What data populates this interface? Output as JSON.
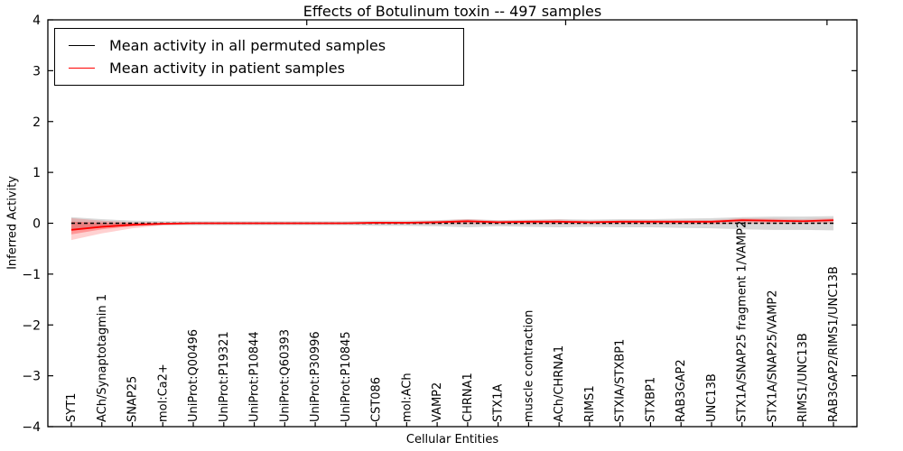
{
  "title": "Effects of Botulinum toxin -- 497 samples",
  "legend": [
    {
      "label": "Mean activity in all permuted samples",
      "color": "#000000"
    },
    {
      "label": "Mean activity in patient samples",
      "color": "#ff0000"
    }
  ],
  "chart_data": {
    "type": "line",
    "title": "Effects of Botulinum toxin -- 497 samples",
    "xlabel": "Cellular Entities",
    "ylabel": "Inferred Activity",
    "ylim": [
      -4,
      4
    ],
    "grid": false,
    "legend_position": "upper left",
    "yticks": [
      4,
      3,
      2,
      1,
      0,
      -1,
      -2,
      -3,
      -4
    ],
    "ytick_labels": [
      "4",
      "3",
      "2",
      "1",
      "0",
      "−1",
      "−2",
      "−3",
      "−4"
    ],
    "categories": [
      "SYT1",
      "ACh/Synaptotagmin 1",
      "SNAP25",
      "mol:Ca2+",
      "UniProt:Q00496",
      "UniProt:P19321",
      "UniProt:P10844",
      "UniProt:Q60393",
      "UniProt:P30996",
      "UniProt:P10845",
      "CST086",
      "mol:ACh",
      "VAMP2",
      "CHRNA1",
      "STX1A",
      "muscle contraction",
      "ACh/CHRNA1",
      "RIMS1",
      "STXIA/STXBP1",
      "STXBP1",
      "RAB3GAP2",
      "UNC13B",
      "STX1A/SNAP25 fragment 1/VAMP2",
      "STX1A/SNAP25/VAMP2",
      "RIMS1/UNC13B",
      "RAB3GAP2/RIMS1/UNC13B"
    ],
    "series": [
      {
        "name": "Mean activity in all permuted samples",
        "color": "#000000",
        "style": "dashed",
        "values": [
          0,
          0,
          0,
          0,
          0,
          0,
          0,
          0,
          0,
          0,
          0,
          0,
          0,
          0,
          0,
          0,
          0,
          0,
          0,
          0,
          0,
          0,
          0,
          0,
          0,
          0
        ]
      },
      {
        "name": "Mean activity in patient samples",
        "color": "#ff0000",
        "style": "solid",
        "values": [
          -0.13,
          -0.07,
          -0.03,
          -0.01,
          0,
          0,
          0,
          0,
          0,
          0,
          0.01,
          0.01,
          0.02,
          0.04,
          0.02,
          0.03,
          0.03,
          0.02,
          0.03,
          0.03,
          0.03,
          0.03,
          0.06,
          0.05,
          0.04,
          0.06
        ]
      }
    ],
    "bands": [
      {
        "name": "permuted-samples-std-band",
        "color": "#999999",
        "opacity": 0.38,
        "upper": [
          0.12,
          0.08,
          0.05,
          0.04,
          0.04,
          0.04,
          0.04,
          0.04,
          0.04,
          0.04,
          0.05,
          0.05,
          0.06,
          0.08,
          0.06,
          0.07,
          0.08,
          0.07,
          0.08,
          0.08,
          0.09,
          0.1,
          0.12,
          0.13,
          0.13,
          0.14
        ],
        "lower": [
          -0.12,
          -0.08,
          -0.05,
          -0.04,
          -0.04,
          -0.04,
          -0.04,
          -0.04,
          -0.04,
          -0.04,
          -0.05,
          -0.05,
          -0.06,
          -0.08,
          -0.06,
          -0.07,
          -0.08,
          -0.07,
          -0.08,
          -0.08,
          -0.09,
          -0.1,
          -0.12,
          -0.13,
          -0.13,
          -0.14
        ]
      },
      {
        "name": "patient-samples-std-band-outer",
        "color": "#ff0000",
        "opacity": 0.18,
        "upper": [
          0.1,
          0.05,
          0.02,
          0.01,
          0.01,
          0.01,
          0.01,
          0.01,
          0.01,
          0.01,
          0.02,
          0.02,
          0.05,
          0.08,
          0.05,
          0.06,
          0.07,
          0.05,
          0.06,
          0.06,
          0.06,
          0.06,
          0.1,
          0.09,
          0.08,
          0.1
        ],
        "lower": [
          -0.33,
          -0.2,
          -0.1,
          -0.04,
          -0.02,
          -0.02,
          -0.02,
          -0.02,
          -0.02,
          -0.02,
          -0.02,
          -0.02,
          -0.02,
          -0.02,
          -0.02,
          -0.02,
          -0.02,
          -0.02,
          -0.02,
          -0.02,
          -0.02,
          -0.02,
          -0.01,
          -0.01,
          -0.01,
          0.0
        ]
      },
      {
        "name": "patient-samples-std-band-inner",
        "color": "#ff0000",
        "opacity": 0.28,
        "upper": [
          0.03,
          0.01,
          0.0,
          0.0,
          0.0,
          0.0,
          0.0,
          0.0,
          0.0,
          0.0,
          0.01,
          0.01,
          0.03,
          0.05,
          0.03,
          0.04,
          0.04,
          0.03,
          0.04,
          0.04,
          0.04,
          0.04,
          0.07,
          0.06,
          0.05,
          0.07
        ],
        "lower": [
          -0.22,
          -0.12,
          -0.06,
          -0.02,
          -0.01,
          -0.01,
          -0.01,
          -0.01,
          -0.01,
          -0.01,
          0.0,
          0.0,
          0.01,
          0.02,
          0.01,
          0.02,
          0.02,
          0.01,
          0.02,
          0.02,
          0.02,
          0.02,
          0.04,
          0.03,
          0.03,
          0.04
        ]
      }
    ]
  }
}
